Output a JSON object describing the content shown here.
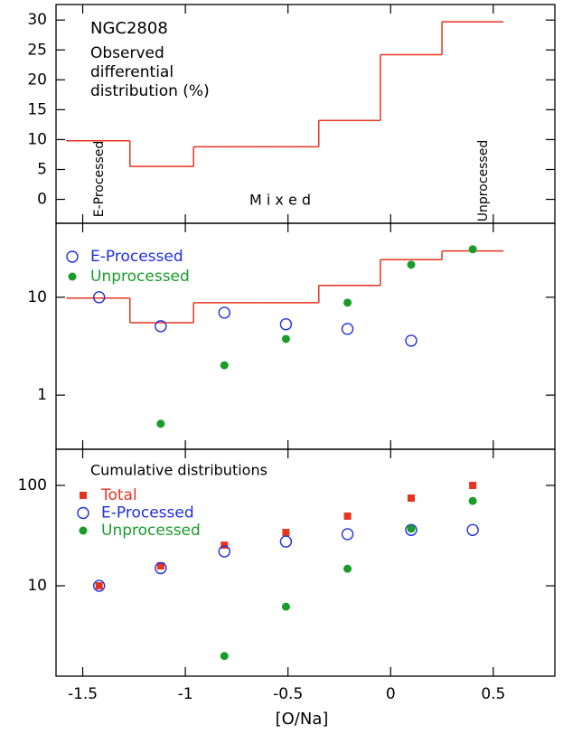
{
  "chart_data": [
    {
      "type": "histogram",
      "title": "NGC2808",
      "subtitle": [
        "Observed",
        "differential",
        "distribution (%)"
      ],
      "annotations": [
        "E-Processed",
        "M i x e d",
        "Unprocessed"
      ],
      "bins": [
        -1.58,
        -1.27,
        -0.96,
        -0.65,
        -0.35,
        -0.05,
        0.25,
        0.55
      ],
      "counts": [
        9.8,
        5.5,
        8.8,
        8.8,
        13.2,
        24.2,
        29.7
      ],
      "color": "#e8331f",
      "ylim": [
        -4,
        32.6
      ],
      "yticks": [
        0,
        5,
        10,
        15,
        20,
        25,
        30
      ],
      "log": false
    },
    {
      "type": "scatter",
      "log": true,
      "ylim": [
        0.28,
        57
      ],
      "yticks": [
        1,
        10
      ],
      "legend": "top-left",
      "histogram": {
        "bins": [
          -1.58,
          -1.27,
          -0.96,
          -0.65,
          -0.35,
          -0.05,
          0.25,
          0.55
        ],
        "counts": [
          9.8,
          5.5,
          8.8,
          8.8,
          13.2,
          24.2,
          29.7
        ],
        "color": "#e8331f"
      },
      "x": [
        -1.42,
        -1.12,
        -0.81,
        -0.51,
        -0.21,
        0.1,
        0.4
      ],
      "series": [
        {
          "name": "E-Processed",
          "color": "#1f2fe0",
          "marker": "open-circle",
          "values": [
            10,
            5.06,
            6.96,
            5.3,
            4.75,
            3.6,
            null
          ]
        },
        {
          "name": "Unprocessed",
          "color": "#1a9c2a",
          "marker": "filled-circle",
          "values": [
            null,
            0.51,
            2.02,
            3.75,
            8.8,
            21.5,
            30.9
          ]
        }
      ]
    },
    {
      "type": "scatter",
      "log": true,
      "title": "Cumulative distributions",
      "ylim": [
        1.26,
        229
      ],
      "yticks": [
        10,
        100
      ],
      "legend": "top-left",
      "x_label": "[O/Na]",
      "xlim": [
        -1.63,
        0.8
      ],
      "xticks": [
        -1.5,
        -1,
        -0.5,
        0,
        0.5
      ],
      "x": [
        -1.42,
        -1.12,
        -0.81,
        -0.51,
        -0.21,
        0.1,
        0.4
      ],
      "series": [
        {
          "name": "Total",
          "color": "#e8331f",
          "marker": "square",
          "values": [
            10,
            15.8,
            25.4,
            34,
            49.4,
            74.8,
            100
          ]
        },
        {
          "name": "E-Processed",
          "color": "#1f2fe0",
          "marker": "open-circle",
          "values": [
            10,
            15,
            22,
            27.6,
            32.7,
            36,
            36
          ]
        },
        {
          "name": "Unprocessed",
          "color": "#1a9c2a",
          "marker": "filled-circle",
          "values": [
            null,
            null,
            2,
            6.2,
            14.8,
            37,
            70
          ]
        }
      ]
    }
  ]
}
